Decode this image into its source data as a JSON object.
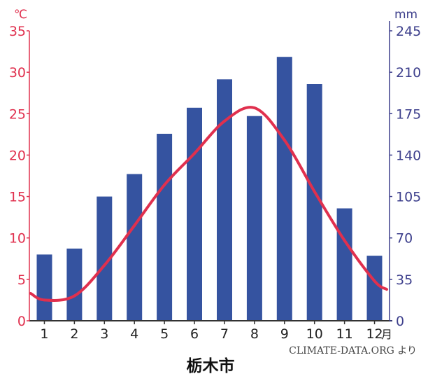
{
  "chart_data": {
    "type": "bar+line",
    "title": "栃木市",
    "source": "CLIMATE-DATA.ORG より",
    "x": {
      "categories": [
        "1",
        "2",
        "3",
        "4",
        "5",
        "6",
        "7",
        "8",
        "9",
        "10",
        "11",
        "12"
      ],
      "unit": "月"
    },
    "y_left": {
      "unit": "℃",
      "ylim": [
        0,
        35
      ],
      "ticks": [
        0,
        5,
        10,
        15,
        20,
        25,
        30,
        35
      ]
    },
    "y_right": {
      "unit": "mm",
      "ylim": [
        0,
        245
      ],
      "ticks": [
        0,
        35,
        70,
        105,
        140,
        175,
        210,
        245
      ]
    },
    "series": [
      {
        "type": "bar",
        "axis": "right",
        "values": [
          56,
          61,
          105,
          124,
          158,
          180,
          204,
          173,
          223,
          200,
          95,
          55
        ]
      },
      {
        "type": "line",
        "axis": "left",
        "values": [
          2.5,
          3.0,
          6.7,
          11.5,
          16.4,
          20.2,
          24.1,
          25.7,
          21.8,
          15.6,
          9.7,
          4.8
        ],
        "start_value": 3.3,
        "end_value": 3.8
      }
    ],
    "colors": {
      "bar": "#3553a0",
      "line": "#e0304e",
      "left_axis": "#e0304e",
      "right_axis": "#3d3f8c",
      "x_axis": "#333333"
    },
    "grid": false
  }
}
